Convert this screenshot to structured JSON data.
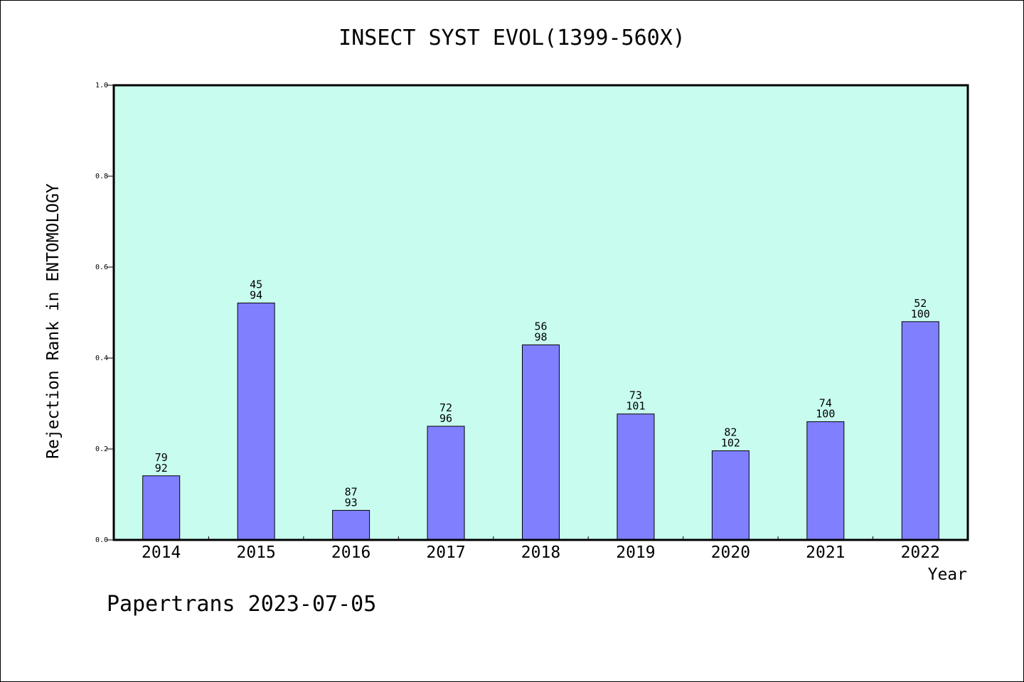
{
  "page": {
    "footer": "Papertrans 2023-07-05"
  },
  "chart_data": {
    "type": "bar",
    "title": "INSECT SYST EVOL(1399-560X)",
    "xlabel": "Year",
    "ylabel": "Rejection Rank in ENTOMOLOGY",
    "ylim": [
      0,
      1.0
    ],
    "yticks": [
      "0.0",
      "0.2",
      "0.4",
      "0.6",
      "0.8",
      "1.0"
    ],
    "grid": false,
    "categories": [
      "2014",
      "2015",
      "2016",
      "2017",
      "2018",
      "2019",
      "2020",
      "2021",
      "2022"
    ],
    "values": [
      0.141,
      0.521,
      0.065,
      0.25,
      0.429,
      0.277,
      0.196,
      0.26,
      0.48
    ],
    "label_top": [
      "79",
      "45",
      "87",
      "72",
      "56",
      "73",
      "82",
      "74",
      "52"
    ],
    "label_bottom": [
      "92",
      "94",
      "93",
      "96",
      "98",
      "101",
      "102",
      "100",
      "100"
    ],
    "colors": {
      "plot_background": "#c8fcef",
      "bar_fill": "#8080ff",
      "bar_stroke": "#000000"
    }
  }
}
